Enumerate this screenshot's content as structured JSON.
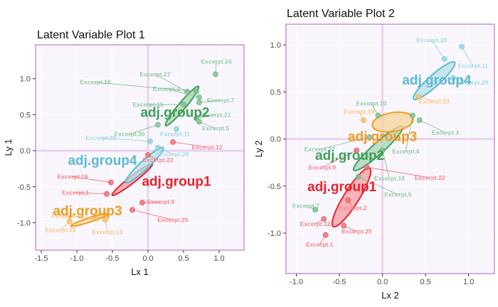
{
  "chart_data": [
    {
      "type": "scatter",
      "title": "Latent Variable Plot 1",
      "xlabel": "Lx 1",
      "ylabel": "Ly 1",
      "xlim": [
        -1.58,
        1.35
      ],
      "ylim": [
        -1.38,
        1.47
      ],
      "xticks": [
        -1.5,
        -1.0,
        -0.5,
        0.0,
        0.5,
        1.0
      ],
      "yticks": [
        -1.0,
        -0.5,
        0.0,
        0.5,
        1.0
      ],
      "xtick_labels": [
        "-1.5",
        "-1.0",
        "-0.5",
        "0.0",
        "0.5",
        "1.0"
      ],
      "ytick_labels": [
        "-1.0",
        "-0.5",
        "0.0",
        "0.5",
        "1.0"
      ],
      "grid": true,
      "groups": [
        {
          "name": "adj.group1",
          "color": "#e8232f",
          "label_at": [
            0.4,
            -0.42
          ],
          "ellipse": {
            "cx": -0.22,
            "cy": -0.4,
            "rx": 0.36,
            "ry": 0.045,
            "angle": 38
          }
        },
        {
          "name": "adj.group2",
          "color": "#3f9f5a",
          "label_at": [
            0.38,
            0.54
          ],
          "ellipse": {
            "cx": 0.48,
            "cy": 0.62,
            "rx": 0.36,
            "ry": 0.05,
            "angle": 50
          }
        },
        {
          "name": "adj.group3",
          "color": "#f29b1e",
          "label_at": [
            -0.85,
            -0.83
          ],
          "ellipse": {
            "cx": -0.82,
            "cy": -0.96,
            "rx": 0.28,
            "ry": 0.03,
            "angle": 18
          }
        },
        {
          "name": "adj.group4",
          "color": "#5bbbd1",
          "label_at": [
            -0.64,
            -0.13
          ],
          "ellipse": {
            "cx": -0.05,
            "cy": -0.2,
            "rx": 0.36,
            "ry": 0.06,
            "angle": 43
          }
        }
      ],
      "points": [
        {
          "label": "Excerpt.24",
          "x": 0.95,
          "y": 1.06,
          "group": "adj.group2",
          "label_at": [
            0.96,
            1.24
          ]
        },
        {
          "label": "Excerpt.27",
          "x": 0.55,
          "y": 0.82,
          "group": "adj.group2",
          "label_at": [
            0.1,
            1.06
          ]
        },
        {
          "label": "Excerpt.18",
          "x": 0.68,
          "y": 0.82,
          "group": "adj.group2",
          "label_at": [
            -0.74,
            0.95
          ]
        },
        {
          "label": "Excerpt.3",
          "x": 0.72,
          "y": 0.74,
          "group": "adj.group2",
          "label_at": [
            0.26,
            0.86
          ]
        },
        {
          "label": "Excerpt.15",
          "x": 0.5,
          "y": 0.64,
          "group": "adj.group2",
          "label_at": [
            0.0,
            0.64
          ]
        },
        {
          "label": "Excerpt.7",
          "x": 0.72,
          "y": 0.67,
          "group": "adj.group2",
          "label_at": [
            1.02,
            0.7
          ]
        },
        {
          "label": "Excerpt.21",
          "x": 0.68,
          "y": 0.45,
          "group": "adj.group2",
          "label_at": [
            0.95,
            0.5
          ]
        },
        {
          "label": "Excerpt.5",
          "x": 0.72,
          "y": 0.4,
          "group": "adj.group2",
          "label_at": [
            0.95,
            0.31
          ]
        },
        {
          "label": "Excerpt.30",
          "x": 0.14,
          "y": 0.36,
          "group": "adj.group2",
          "label_at": [
            -0.26,
            0.23
          ]
        },
        {
          "label": "Excerpt.11",
          "x": 0.4,
          "y": 0.3,
          "group": "adj.group4",
          "label_at": [
            0.38,
            0.23
          ]
        },
        {
          "label": "Excerpt.20",
          "x": 0.03,
          "y": 0.13,
          "group": "adj.group4",
          "label_at": [
            -0.66,
            0.18
          ]
        },
        {
          "label": "Excerpt.28",
          "x": 0.14,
          "y": 0.04,
          "group": "adj.group4",
          "label_at": [
            0.36,
            -0.05
          ]
        },
        {
          "label": "Excerpt.12",
          "x": 0.35,
          "y": 0.12,
          "group": "adj.group1",
          "label_at": [
            0.83,
            0.05
          ]
        },
        {
          "label": "Excerpt.22",
          "x": 0.0,
          "y": -0.06,
          "group": "adj.group1",
          "label_at": [
            0.14,
            -0.13
          ]
        },
        {
          "label": "Excerpt.16",
          "x": -0.52,
          "y": -0.44,
          "group": "adj.group1",
          "label_at": [
            -1.06,
            -0.36
          ]
        },
        {
          "label": "Excerpt.1",
          "x": -0.58,
          "y": -0.6,
          "group": "adj.group1",
          "label_at": [
            -1.02,
            -0.58
          ]
        },
        {
          "label": "Excerpt.9",
          "x": -0.08,
          "y": -0.72,
          "group": "adj.group1",
          "label_at": [
            0.18,
            -0.71
          ]
        },
        {
          "label": "Excerpt.25",
          "x": -0.22,
          "y": -0.82,
          "group": "adj.group1",
          "label_at": [
            0.35,
            -0.96
          ]
        },
        {
          "label": "Excerpt.23",
          "x": -1.1,
          "y": -0.98,
          "group": "adj.group3",
          "label_at": [
            -1.23,
            -1.1
          ]
        },
        {
          "label": "Excerpt.13",
          "x": -0.6,
          "y": -0.96,
          "group": "adj.group3",
          "label_at": [
            -0.57,
            -1.13
          ]
        },
        {
          "label": "Excerpt",
          "x": -0.72,
          "y": -0.94,
          "group": "adj.group3",
          "label_at": [
            -1.2,
            -0.9
          ]
        }
      ]
    },
    {
      "type": "scatter",
      "title": "Latent Variable Plot 2",
      "xlabel": "Lx 2",
      "ylabel": "Ly 2",
      "xlim": [
        -1.12,
        1.3
      ],
      "ylim": [
        -1.43,
        1.22
      ],
      "xticks": [
        -1.0,
        -0.5,
        0.0,
        0.5,
        1.0
      ],
      "yticks": [
        -1.0,
        -0.5,
        0.0,
        0.5,
        1.0
      ],
      "xtick_labels": [
        "-1.0",
        "-0.5",
        "0.0",
        "0.5",
        "1.0"
      ],
      "ytick_labels": [
        "-1.0",
        "-0.5",
        "0.0",
        "0.5",
        "1.0"
      ],
      "grid": true,
      "groups": [
        {
          "name": "adj.group1",
          "color": "#e8232f",
          "label_at": [
            -0.47,
            -0.5
          ],
          "ellipse": {
            "cx": -0.36,
            "cy": -0.62,
            "rx": 0.4,
            "ry": 0.08,
            "angle": 58
          }
        },
        {
          "name": "adj.group2",
          "color": "#3f9f5a",
          "label_at": [
            -0.38,
            -0.17
          ],
          "ellipse": {
            "cx": -0.05,
            "cy": -0.1,
            "rx": 0.38,
            "ry": 0.06,
            "angle": 42
          }
        },
        {
          "name": "adj.group3",
          "color": "#f29b1e",
          "label_at": [
            0.0,
            0.03
          ],
          "ellipse": {
            "cx": 0.12,
            "cy": 0.18,
            "rx": 0.24,
            "ry": 0.1,
            "angle": 10
          }
        },
        {
          "name": "adj.group4",
          "color": "#5bbbd1",
          "label_at": [
            0.63,
            0.63
          ],
          "ellipse": {
            "cx": 0.6,
            "cy": 0.62,
            "rx": 0.32,
            "ry": 0.06,
            "angle": 42
          }
        }
      ],
      "points": [
        {
          "label": "Excerpt.28",
          "x": 0.72,
          "y": 0.85,
          "group": "adj.group4",
          "label_at": [
            0.57,
            1.05
          ]
        },
        {
          "label": "Excerpt.11",
          "x": 0.92,
          "y": 0.98,
          "group": "adj.group4",
          "label_at": [
            1.05,
            0.78
          ]
        },
        {
          "label": "Excerpt.29",
          "x": 0.82,
          "y": 0.65,
          "group": "adj.group4",
          "label_at": [
            1.05,
            0.6
          ]
        },
        {
          "label": "Excerpt.23",
          "x": 0.42,
          "y": 0.45,
          "group": "adj.group3",
          "label_at": [
            0.6,
            0.4
          ]
        },
        {
          "label": "Excerpt.10",
          "x": -0.05,
          "y": 0.25,
          "group": "adj.group2",
          "label_at": [
            -0.13,
            0.38
          ]
        },
        {
          "label": "Excerpt.19",
          "x": -0.22,
          "y": 0.2,
          "group": "adj.group3",
          "label_at": [
            -0.27,
            0.29
          ]
        },
        {
          "label": "Excerpt.3",
          "x": 0.43,
          "y": 0.2,
          "group": "adj.group2",
          "label_at": [
            0.73,
            0.07
          ]
        },
        {
          "label": "Excerpt.4",
          "x": 0.35,
          "y": 0.25,
          "group": "adj.group2",
          "label_at": [
            0.27,
            -0.13
          ]
        },
        {
          "label": "Excerpt.27",
          "x": -0.15,
          "y": 0.02,
          "group": "adj.group2",
          "label_at": [
            -0.73,
            -0.11
          ]
        },
        {
          "label": "Excerpt.9",
          "x": -0.3,
          "y": -0.12,
          "group": "adj.group1",
          "label_at": [
            -0.7,
            -0.3
          ]
        },
        {
          "label": "Excerpt.18",
          "x": 0.0,
          "y": -0.12,
          "group": "adj.group2",
          "label_at": [
            0.08,
            -0.42
          ]
        },
        {
          "label": "Excerpt.22",
          "x": -0.18,
          "y": -0.3,
          "group": "adj.group1",
          "label_at": [
            0.55,
            -0.41
          ]
        },
        {
          "label": "Excerpt.5",
          "x": -0.28,
          "y": -0.4,
          "group": "adj.group2",
          "label_at": [
            0.18,
            -0.59
          ]
        },
        {
          "label": "Excerpt.7",
          "x": -0.78,
          "y": -0.75,
          "group": "adj.group2",
          "label_at": [
            -0.89,
            -0.71
          ]
        },
        {
          "label": "Excerpt.2",
          "x": -0.4,
          "y": -0.65,
          "group": "adj.group1",
          "label_at": [
            -0.34,
            -0.73
          ]
        },
        {
          "label": "Excerpt.12",
          "x": -0.68,
          "y": -0.85,
          "group": "adj.group1",
          "label_at": [
            -0.78,
            -0.9
          ]
        },
        {
          "label": "Excerpt.25",
          "x": -0.45,
          "y": -0.92,
          "group": "adj.group1",
          "label_at": [
            -0.3,
            -0.98
          ]
        },
        {
          "label": "Excerpt.1",
          "x": -0.66,
          "y": -1.02,
          "group": "adj.group1",
          "label_at": [
            -0.73,
            -1.12
          ]
        }
      ]
    }
  ]
}
